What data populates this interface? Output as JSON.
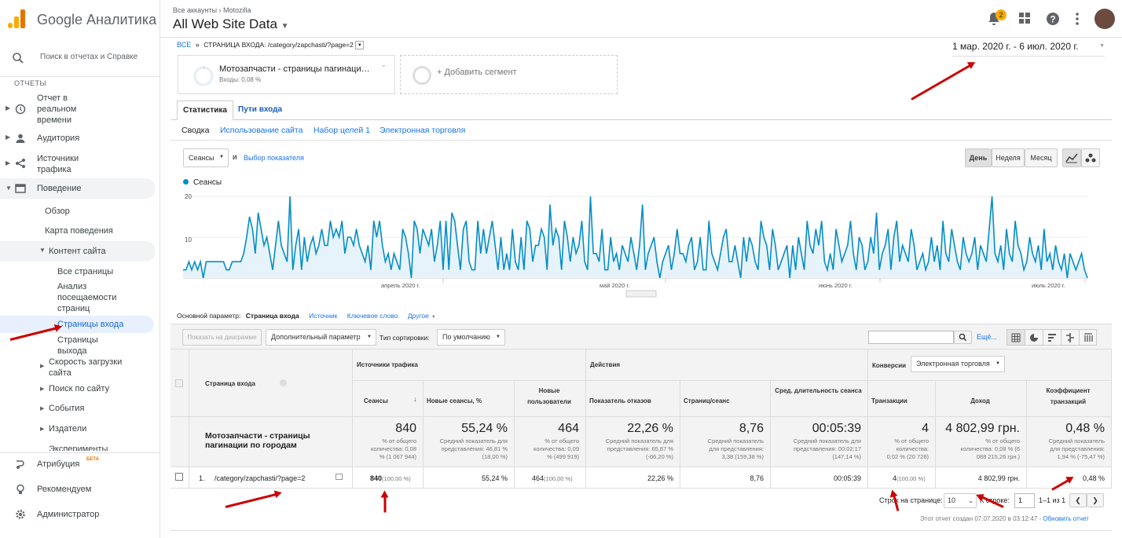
{
  "app": {
    "brand": "Google Аналитика",
    "breadcrumb": "Все аккаунты › Motozilla",
    "view_title": "All Web Site Data",
    "notif_count": "2"
  },
  "sidebar": {
    "search_placeholder": "Поиск в отчетах и Справке",
    "section": "ОТЧЕТЫ",
    "items": [
      {
        "label": "Отчет в реальном времени"
      },
      {
        "label": "Аудитория"
      },
      {
        "label": "Источники трафика"
      },
      {
        "label": "Поведение"
      }
    ],
    "behavior": {
      "overview": "Обзор",
      "flow": "Карта поведения",
      "content": "Контент сайта",
      "all_pages": "Все страницы",
      "landing_analysis": "Анализ посещаемости страниц",
      "landing": "Страницы входа",
      "exit": "Страницы выхода",
      "speed": "Скорость загрузки сайта",
      "search": "Поиск по сайту",
      "events": "События",
      "publishers": "Издатели",
      "experiments": "Эксперименты"
    },
    "bottom": [
      {
        "label": "Атрибуция",
        "badge": "БЕТА"
      },
      {
        "label": "Рекомендуем"
      },
      {
        "label": "Администратор"
      }
    ]
  },
  "report": {
    "breadcrumb_all": "ВСЕ",
    "breadcrumb_sep": "»",
    "breadcrumb_cur": "СТРАНИЦА ВХОДА: /category/zapchasti/?page=2",
    "date_range": "1 мар. 2020 г. - 6 июл. 2020 г.",
    "segment_name": "Мотозапчасти - страницы пагинаци…",
    "segment_sub": "Входы: 0,08 %",
    "add_segment": "+ Добавить сегмент",
    "tabs": [
      "Статистика",
      "Пути входа"
    ],
    "subtabs": [
      "Сводка",
      "Использование сайта",
      "Набор целей 1",
      "Электронная торговля"
    ],
    "metric_select": "Сеансы",
    "and": "и",
    "pick_metric": "Выбор показателя",
    "periods": [
      "День",
      "Неделя",
      "Месяц"
    ],
    "legend": "Сеансы",
    "primary_dim_label": "Основной параметр:",
    "primary_dims": [
      "Страница входа",
      "Источник",
      "Ключевое слово",
      "Другое"
    ],
    "plot_btn": "Показать на диаграмме",
    "secondary_dim": "Дополнительный параметр",
    "sort_type_label": "Тип сортировки:",
    "sort_type": "По умолчанию",
    "more": "Ещё...",
    "footer_note": "Этот отчет создан 07.07.2020 в 03:12:47 -",
    "refresh": "Обновить отчет",
    "pager": {
      "rows_label": "Строк на странице:",
      "rows": "10",
      "goto_label": "К строке:",
      "goto": "1",
      "range": "1–1 из 1"
    }
  },
  "chart_data": {
    "type": "area",
    "series": [
      {
        "name": "Сеансы",
        "color": "#058dc7",
        "values": [
          2,
          2,
          4,
          2,
          4,
          2,
          4,
          0,
          4,
          4,
          4,
          4,
          4,
          4,
          4,
          2,
          2,
          4,
          4,
          4,
          4,
          6,
          10,
          15,
          12,
          6,
          16,
          12,
          8,
          10,
          6,
          2,
          8,
          14,
          8,
          6,
          4,
          20,
          2,
          8,
          12,
          2,
          10,
          4,
          8,
          10,
          6,
          8,
          12,
          8,
          8,
          14,
          10,
          12,
          10,
          14,
          6,
          10,
          10,
          8,
          12,
          8,
          6,
          4,
          8,
          2,
          14,
          10,
          14,
          8,
          4,
          6,
          2,
          6,
          4,
          2,
          12,
          10,
          6,
          0,
          14,
          12,
          6,
          12,
          10,
          8,
          12,
          4,
          8,
          14,
          2,
          14,
          2,
          16,
          14,
          8,
          2,
          12,
          14,
          4,
          2,
          2,
          14,
          6,
          12,
          6,
          10,
          14,
          8,
          2,
          10,
          2,
          6,
          2,
          12,
          4,
          2,
          10,
          2,
          14,
          12,
          4,
          8,
          8,
          12,
          10,
          2,
          18,
          8,
          12,
          10,
          2,
          14,
          10,
          4,
          10,
          6,
          8,
          14,
          4,
          2,
          20,
          6,
          6,
          4,
          12,
          2,
          2,
          10,
          4,
          6,
          2,
          8,
          6,
          4,
          10,
          6,
          2,
          8,
          18,
          2,
          6,
          8,
          10,
          4,
          0,
          4,
          6,
          8,
          2,
          6,
          12,
          6,
          6,
          4,
          8,
          10,
          2,
          4,
          10,
          2,
          2,
          14,
          6,
          4,
          2,
          6,
          10,
          12,
          4,
          4,
          8,
          4,
          0,
          10,
          4,
          10,
          8,
          4,
          2,
          14,
          10,
          8,
          2,
          12,
          8,
          2,
          4,
          6,
          8,
          0,
          8,
          2,
          10,
          6,
          2,
          14,
          8,
          6,
          12,
          8,
          14,
          4,
          2,
          6,
          2,
          12,
          8,
          4,
          6,
          8,
          14,
          6,
          2,
          10,
          8,
          2,
          4,
          10,
          6,
          16,
          2,
          6,
          8,
          12,
          2,
          10,
          14,
          4,
          8,
          6,
          4,
          12,
          8,
          2,
          4,
          6,
          2,
          4,
          10,
          4,
          8,
          2,
          14,
          6,
          4,
          12,
          8,
          4,
          2,
          10,
          6,
          4,
          6,
          10,
          2,
          8,
          6,
          4,
          12,
          20,
          6,
          4,
          8,
          2,
          12,
          6,
          4,
          14,
          8,
          6,
          2,
          4,
          10,
          6,
          4,
          8,
          2,
          12,
          4,
          6,
          2,
          8,
          4,
          2,
          6,
          0,
          6,
          4,
          2,
          4,
          6,
          2,
          0
        ]
      }
    ],
    "yticks": [
      "20",
      "10"
    ],
    "ylim": [
      0,
      20
    ],
    "xticks": [
      "апрель 2020 г.",
      "май 2020 г.",
      "июнь 2020 г.",
      "июль 2020 г."
    ]
  },
  "table": {
    "headers": {
      "dim": "Страница входа",
      "group_traffic": "Источники трафика",
      "group_actions": "Действия",
      "group_conv": "Конверсии",
      "conv_select": "Электронная торговля",
      "cols": [
        "Сеансы",
        "Новые сеансы, %",
        "Новые пользователи",
        "Показатель отказов",
        "Страниц/сеанс",
        "Сред. длительность сеанса",
        "Транзакции",
        "Доход",
        "Коэффициент транзакций"
      ]
    },
    "total_label": "Мотозапчасти - страницы пагинации по городам",
    "totals": [
      {
        "v": "840",
        "s": "% от общего количества: 0,08 % (1 067 944)"
      },
      {
        "v": "55,24 %",
        "s": "Средний показатель для представления: 46,81 % (18,00 %)"
      },
      {
        "v": "464",
        "s": "% от общего количества: 0,09 % (499 919)"
      },
      {
        "v": "22,26 %",
        "s": "Средний показатель для представления: 65,87 % (-66,20 %)"
      },
      {
        "v": "8,76",
        "s": "Средний показатель для представления: 3,38 (159,38 %)"
      },
      {
        "v": "00:05:39",
        "s": "Средний показатель для представления: 00:02:17 (147,14 %)"
      },
      {
        "v": "4",
        "s": "% от общего количества: 0,02 % (20 728)"
      },
      {
        "v": "4 802,99 грн.",
        "s": "% от общего количества: 0,08 % (6 088 215,26 грн.)"
      },
      {
        "v": "0,48 %",
        "s": "Средний показатель для представления: 1,94 % (-75,47 %)"
      }
    ],
    "row": {
      "num": "1.",
      "page": "/category/zapchasti/?page=2",
      "cells": [
        "840",
        "55,24 %",
        "464",
        "22,26 %",
        "8,76",
        "00:05:39",
        "4",
        "4 802,99 грн.",
        "0,48 %"
      ],
      "pct1": "(100,00 %)",
      "pct3": "(100,00 %)",
      "pct7": "(100,00 %)"
    }
  }
}
